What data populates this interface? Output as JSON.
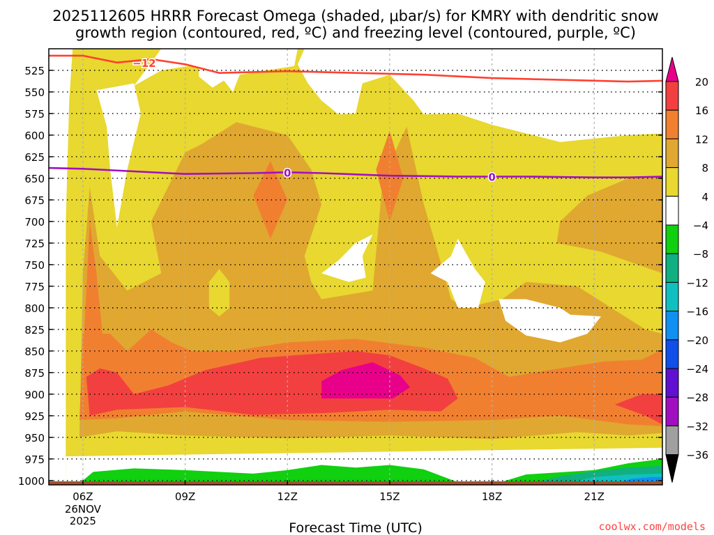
{
  "chart_data": {
    "type": "contour",
    "title_lines": [
      "2025112605 HRRR Forecast Omega (shaded, μbar/s) for KMRY with dendritic snow",
      "growth region (contoured, red, ºC) and freezing level (contoured, purple, ºC)"
    ],
    "xlabel": "Forecast Time (UTC)",
    "credit": "coolwx.com/models",
    "x_range_hours": [
      5.0,
      23.0
    ],
    "y_range_hpa": [
      500,
      1005
    ],
    "x_ticks": [
      {
        "hour": 6,
        "label": "06Z",
        "sublabels": [
          "26NOV",
          "2025"
        ]
      },
      {
        "hour": 9,
        "label": "09Z",
        "sublabels": []
      },
      {
        "hour": 12,
        "label": "12Z",
        "sublabels": []
      },
      {
        "hour": 15,
        "label": "15Z",
        "sublabels": []
      },
      {
        "hour": 18,
        "label": "18Z",
        "sublabels": []
      },
      {
        "hour": 21,
        "label": "21Z",
        "sublabels": []
      }
    ],
    "y_ticks": [
      "525",
      "550",
      "575",
      "600",
      "625",
      "650",
      "675",
      "700",
      "725",
      "750",
      "775",
      "800",
      "825",
      "850",
      "875",
      "900",
      "925",
      "950",
      "975",
      "1000"
    ],
    "colorbar": {
      "labels": [
        "20",
        "16",
        "12",
        "8",
        "4",
        "−4",
        "−8",
        "−12",
        "−16",
        "−20",
        "−24",
        "−28",
        "−32",
        "−36"
      ],
      "colors": [
        "#e8008a",
        "#f24040",
        "#f08030",
        "#e0a830",
        "#e8d830",
        "#ffffff",
        "#10d010",
        "#10b080",
        "#10c0c0",
        "#1090f0",
        "#1050e8",
        "#6010d0",
        "#a010c0",
        "#a0a0a0",
        "#000000"
      ]
    },
    "fill_colors": {
      "yellow": "#e8d830",
      "gold": "#e0a830",
      "orange": "#f08030",
      "red": "#f24040",
      "magenta": "#e8008a",
      "green": "#10d010",
      "teal": "#10b080",
      "cyan": "#10c0c0",
      "blue": "#1090f0",
      "ground": "#a0522d"
    },
    "contours": [
      {
        "name": "dgz",
        "label": "−12",
        "color": "#ff4030",
        "points": [
          [
            5.0,
            508
          ],
          [
            6.0,
            508
          ],
          [
            7.0,
            516
          ],
          [
            8.0,
            512
          ],
          [
            9.0,
            518
          ],
          [
            10.0,
            528
          ],
          [
            12.0,
            526
          ],
          [
            14.0,
            528
          ],
          [
            16.0,
            530
          ],
          [
            18.0,
            534
          ],
          [
            20.0,
            536
          ],
          [
            22.0,
            538
          ],
          [
            23.0,
            537
          ]
        ],
        "label_at": [
          7.8,
          516
        ]
      },
      {
        "name": "freezing",
        "label": "0",
        "color": "#a010c0",
        "points": [
          [
            5.0,
            638
          ],
          [
            6.0,
            639
          ],
          [
            7.5,
            642
          ],
          [
            9.0,
            645
          ],
          [
            11.0,
            644
          ],
          [
            12.0,
            643
          ],
          [
            13.0,
            644
          ],
          [
            15.0,
            647
          ],
          [
            17.0,
            648
          ],
          [
            19.0,
            648
          ],
          [
            21.0,
            649
          ],
          [
            22.0,
            649
          ],
          [
            23.0,
            648
          ]
        ],
        "label_at": [
          [
            12.0,
            643
          ],
          [
            18.0,
            648
          ]
        ]
      }
    ]
  }
}
